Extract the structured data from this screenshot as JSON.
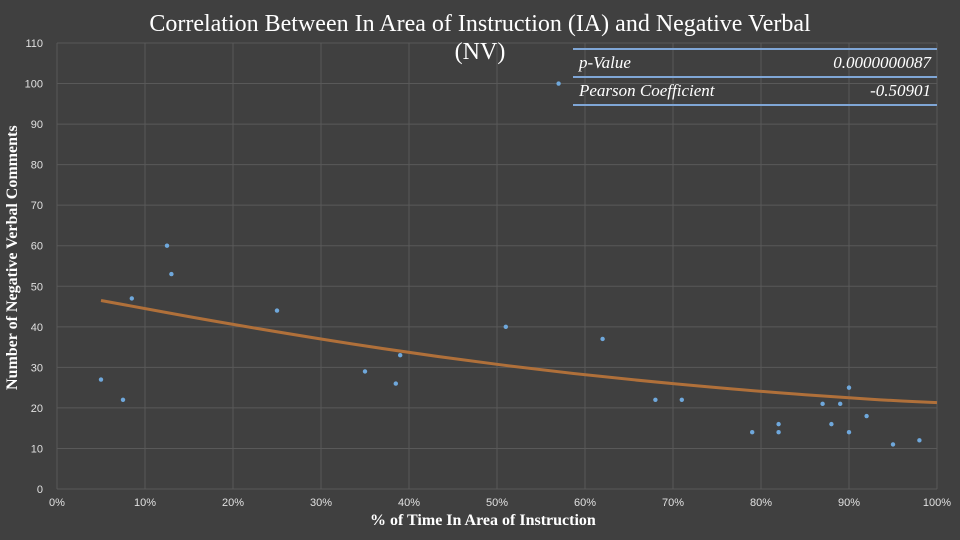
{
  "chart_data": {
    "type": "scatter",
    "title": "Correlation Between In Area of Instruction (IA) and Negative Verbal (NV)",
    "xlabel": "% of Time In Area of Instruction",
    "ylabel": "Number of Negative Verbal Comments",
    "xlim": [
      0,
      100
    ],
    "ylim": [
      0,
      110
    ],
    "x_ticks": [
      0,
      10,
      20,
      30,
      40,
      50,
      60,
      70,
      80,
      90,
      100
    ],
    "x_tick_labels": [
      "0%",
      "10%",
      "20%",
      "30%",
      "40%",
      "50%",
      "60%",
      "70%",
      "80%",
      "90%",
      "100%"
    ],
    "y_ticks": [
      0,
      10,
      20,
      30,
      40,
      50,
      60,
      70,
      80,
      90,
      100,
      110
    ],
    "y_tick_labels": [
      "0",
      "10",
      "20",
      "30",
      "40",
      "50",
      "60",
      "70",
      "80",
      "90",
      "100",
      "110"
    ],
    "grid": true,
    "series": [
      {
        "name": "NV",
        "points": [
          [
            5,
            27
          ],
          [
            7.5,
            22
          ],
          [
            8.5,
            47
          ],
          [
            12.5,
            60
          ],
          [
            13,
            53
          ],
          [
            25,
            44
          ],
          [
            35,
            29
          ],
          [
            38.5,
            26
          ],
          [
            39,
            33
          ],
          [
            51,
            40
          ],
          [
            57,
            100
          ],
          [
            62,
            37
          ],
          [
            68,
            22
          ],
          [
            71,
            22
          ],
          [
            79,
            14
          ],
          [
            82,
            16
          ],
          [
            82,
            14
          ],
          [
            87,
            21
          ],
          [
            88,
            16
          ],
          [
            89,
            21
          ],
          [
            90,
            25
          ],
          [
            90,
            14
          ],
          [
            92,
            18
          ],
          [
            95,
            11
          ],
          [
            98,
            12
          ]
        ]
      }
    ],
    "trendline": {
      "type": "polynomial",
      "points": [
        [
          5,
          46.5
        ],
        [
          20,
          40.5
        ],
        [
          40,
          33.5
        ],
        [
          60,
          28
        ],
        [
          80,
          24
        ],
        [
          90,
          22.5
        ],
        [
          95,
          21.8
        ],
        [
          100,
          21.3
        ]
      ]
    },
    "colors": {
      "background": "#404040",
      "grid": "#595959",
      "points": "#6fa8dc",
      "trendline": "#b0703a"
    }
  },
  "stats": {
    "pvalue_label": "p-Value",
    "pvalue": "0.0000000087",
    "pearson_label": "Pearson Coefficient",
    "pearson": "-0.50901"
  },
  "title_line1": "Correlation Between In Area of Instruction (IA) and Negative Verbal",
  "title_line2": "(NV)"
}
